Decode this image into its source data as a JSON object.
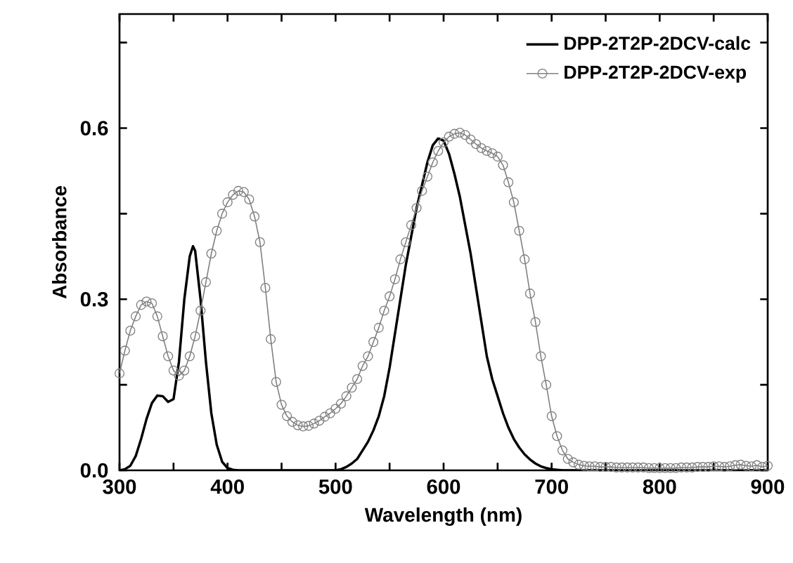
{
  "chart_data": {
    "type": "line",
    "xlabel": "Wavelength (nm)",
    "ylabel": "Absorbance",
    "xlim": [
      300,
      900
    ],
    "ylim": [
      0,
      0.8
    ],
    "xticks": [
      300,
      {
        "value": 350,
        "label": null
      },
      400,
      {
        "value": 450,
        "label": null
      },
      500,
      {
        "value": 550,
        "label": null
      },
      600,
      {
        "value": 650,
        "label": null
      },
      700,
      {
        "value": 750,
        "label": null
      },
      800,
      {
        "value": 850,
        "label": null
      },
      900
    ],
    "yticks": [
      {
        "value": 0,
        "label": "0.0"
      },
      {
        "value": 0.15,
        "label": null
      },
      {
        "value": 0.3,
        "label": "0.3"
      },
      {
        "value": 0.45,
        "label": null
      },
      {
        "value": 0.6,
        "label": "0.6"
      },
      {
        "value": 0.75,
        "label": null
      }
    ],
    "tick_labels": "xy",
    "legend": "top right",
    "series": [
      {
        "name": "DPP-2T2P-2DCV-calc",
        "color": "#000000",
        "marker": "none",
        "x": [
          300,
          305,
          310,
          315,
          320,
          325,
          330,
          335,
          340,
          345,
          350,
          355,
          360,
          365,
          368,
          370,
          375,
          380,
          385,
          390,
          395,
          400,
          405,
          410,
          500,
          505,
          510,
          515,
          520,
          525,
          530,
          535,
          540,
          545,
          550,
          555,
          560,
          565,
          570,
          575,
          580,
          585,
          590,
          595,
          600,
          605,
          610,
          615,
          620,
          625,
          630,
          635,
          640,
          645,
          650,
          655,
          660,
          665,
          670,
          675,
          680,
          685,
          690,
          695,
          700,
          710,
          900
        ],
        "values": [
          0,
          0.002,
          0.008,
          0.025,
          0.055,
          0.09,
          0.118,
          0.131,
          0.13,
          0.12,
          0.125,
          0.19,
          0.3,
          0.375,
          0.393,
          0.385,
          0.3,
          0.19,
          0.1,
          0.045,
          0.015,
          0.004,
          0.001,
          0,
          0,
          0.002,
          0.006,
          0.012,
          0.02,
          0.035,
          0.05,
          0.07,
          0.095,
          0.13,
          0.18,
          0.24,
          0.3,
          0.36,
          0.41,
          0.46,
          0.5,
          0.54,
          0.57,
          0.582,
          0.578,
          0.555,
          0.52,
          0.48,
          0.43,
          0.38,
          0.32,
          0.26,
          0.2,
          0.16,
          0.13,
          0.1,
          0.075,
          0.055,
          0.04,
          0.028,
          0.019,
          0.012,
          0.007,
          0.004,
          0.002,
          0,
          0
        ]
      },
      {
        "name": "DPP-2T2P-2DCV-exp",
        "color": "#808080",
        "marker": "circle",
        "x": [
          300,
          305,
          310,
          315,
          320,
          325,
          330,
          335,
          340,
          345,
          350,
          355,
          360,
          365,
          370,
          375,
          380,
          385,
          390,
          395,
          400,
          405,
          410,
          415,
          420,
          425,
          430,
          435,
          440,
          445,
          450,
          455,
          460,
          465,
          470,
          475,
          480,
          485,
          490,
          495,
          500,
          505,
          510,
          515,
          520,
          525,
          530,
          535,
          540,
          545,
          550,
          555,
          560,
          565,
          570,
          575,
          580,
          585,
          590,
          595,
          600,
          605,
          610,
          615,
          620,
          625,
          630,
          635,
          640,
          645,
          650,
          655,
          660,
          665,
          670,
          675,
          680,
          685,
          690,
          695,
          700,
          705,
          710,
          715,
          720,
          725,
          730,
          735,
          740,
          745,
          750,
          755,
          760,
          765,
          770,
          775,
          780,
          785,
          790,
          795,
          800,
          805,
          810,
          815,
          820,
          825,
          830,
          835,
          840,
          845,
          850,
          855,
          860,
          865,
          870,
          875,
          880,
          885,
          890,
          895,
          900
        ],
        "values": [
          0.17,
          0.21,
          0.245,
          0.27,
          0.29,
          0.296,
          0.293,
          0.27,
          0.235,
          0.2,
          0.175,
          0.166,
          0.175,
          0.2,
          0.235,
          0.28,
          0.33,
          0.38,
          0.42,
          0.45,
          0.47,
          0.483,
          0.49,
          0.488,
          0.475,
          0.445,
          0.4,
          0.32,
          0.23,
          0.155,
          0.115,
          0.095,
          0.085,
          0.079,
          0.077,
          0.078,
          0.082,
          0.087,
          0.094,
          0.1,
          0.108,
          0.117,
          0.13,
          0.145,
          0.16,
          0.183,
          0.2,
          0.225,
          0.25,
          0.28,
          0.305,
          0.335,
          0.37,
          0.4,
          0.43,
          0.46,
          0.49,
          0.515,
          0.54,
          0.56,
          0.575,
          0.585,
          0.59,
          0.592,
          0.588,
          0.58,
          0.572,
          0.565,
          0.56,
          0.556,
          0.55,
          0.535,
          0.505,
          0.47,
          0.42,
          0.37,
          0.31,
          0.26,
          0.2,
          0.15,
          0.095,
          0.06,
          0.035,
          0.02,
          0.014,
          0.01,
          0.008,
          0.007,
          0.007,
          0.006,
          0.006,
          0.006,
          0.005,
          0.005,
          0.005,
          0.005,
          0.005,
          0.005,
          0.004,
          0.004,
          0.004,
          0.004,
          0.004,
          0.004,
          0.005,
          0.005,
          0.005,
          0.006,
          0.006,
          0.006,
          0.007,
          0.007,
          0.006,
          0.007,
          0.009,
          0.01,
          0.008,
          0.007,
          0.009,
          0.006,
          0.008
        ]
      }
    ]
  }
}
